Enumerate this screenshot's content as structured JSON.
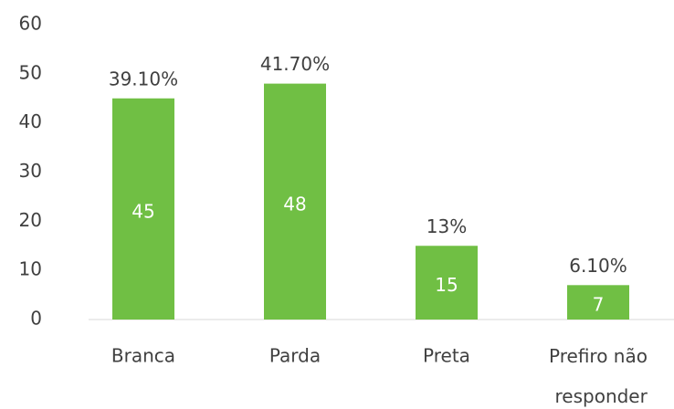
{
  "chart_data": {
    "type": "bar",
    "categories": [
      "Branca",
      "Parda",
      "Preta",
      "Prefiro não responder"
    ],
    "values": [
      45,
      48,
      15,
      7
    ],
    "shares": [
      39.1,
      41.7,
      13,
      6.1
    ],
    "share_labels": [
      "39.10%",
      "41.70%",
      "13%",
      "6.10%"
    ],
    "color": "#70bf44",
    "ylim": [
      0,
      60
    ],
    "yticks": [
      0,
      10,
      20,
      30,
      40,
      50,
      60
    ],
    "grid": false
  }
}
